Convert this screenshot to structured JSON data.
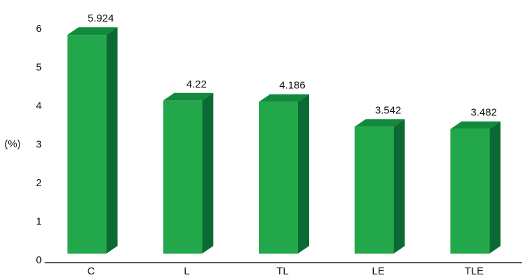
{
  "chart_data": {
    "type": "bar3d",
    "y_label": "(%)",
    "categories": [
      "C",
      "L",
      "TL",
      "LE",
      "TLE"
    ],
    "values": [
      5.924,
      4.22,
      4.186,
      3.542,
      3.482
    ],
    "color": "#22a84a",
    "ylim": [
      0,
      6
    ],
    "yticks": [
      0,
      1,
      2,
      3,
      4,
      5,
      6
    ]
  }
}
